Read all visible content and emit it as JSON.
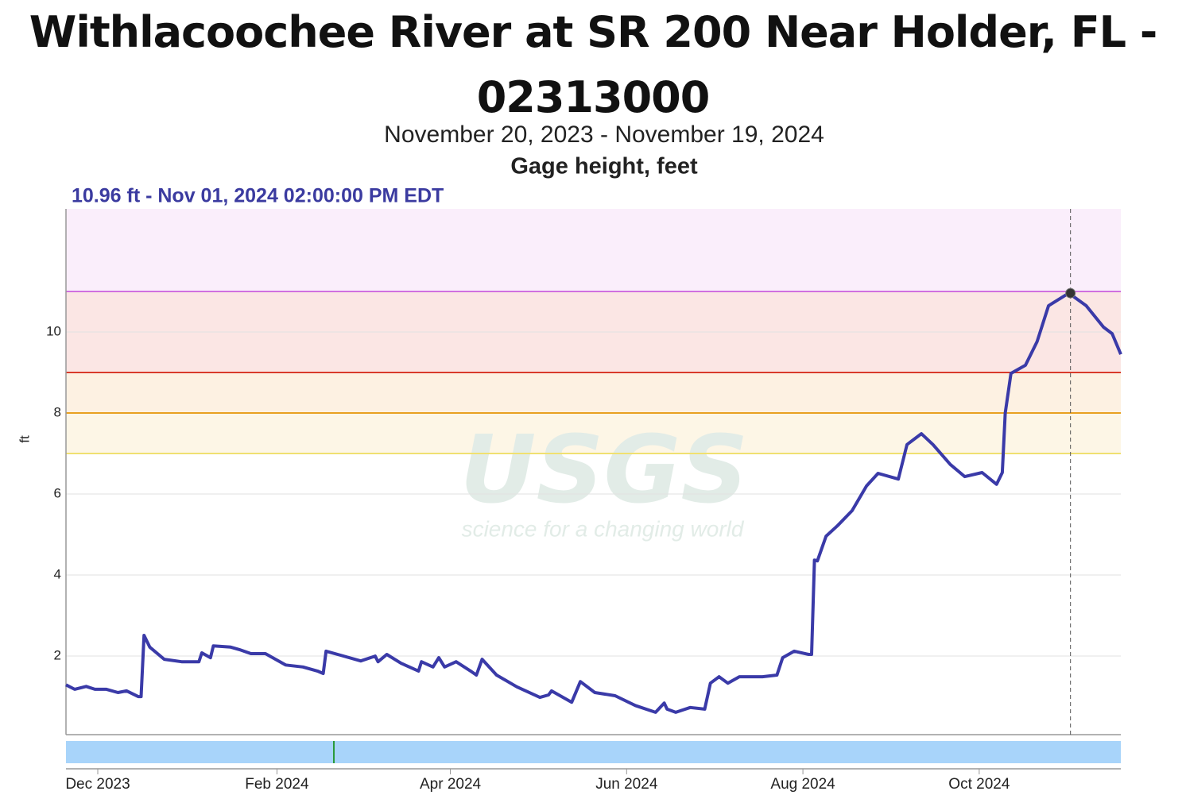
{
  "chart_data": {
    "type": "line",
    "title": "Withlacoochee River at SR 200 Near Holder, FL - 02313000",
    "subtitle": "November 20, 2023 - November 19, 2024",
    "parameter": "Gage height, feet",
    "y_label": "ft",
    "watermark": {
      "name": "USGS",
      "tagline": "science for a changing world"
    },
    "hover": {
      "x": "2024-11-01T14:00",
      "value": 10.96,
      "label": "10.96 ft - Nov 01, 2024 02:00:00 PM EDT"
    },
    "xlim": [
      "2023-11-20",
      "2024-11-19"
    ],
    "xticks": [
      {
        "value": "2023-12-01",
        "label": "Dec 2023"
      },
      {
        "value": "2024-02-01",
        "label": "Feb 2024"
      },
      {
        "value": "2024-04-01",
        "label": "Apr 2024"
      },
      {
        "value": "2024-06-01",
        "label": "Jun 2024"
      },
      {
        "value": "2024-08-01",
        "label": "Aug 2024"
      },
      {
        "value": "2024-10-01",
        "label": "Oct 2024"
      }
    ],
    "ylim": [
      0.06,
      13.04
    ],
    "yticks": [
      2,
      4,
      6,
      8,
      10
    ],
    "grid": true,
    "thresholds": [
      {
        "value": 7,
        "color": "#f0e070",
        "fill": "#fdf6e6"
      },
      {
        "value": 8,
        "color": "#e8a020",
        "fill": "#fdf1e2"
      },
      {
        "value": 9,
        "color": "#d83a2a",
        "fill": "#fbe6e4"
      },
      {
        "value": 11,
        "color": "#d070e0",
        "fill": "#faeefb"
      }
    ],
    "x": [
      "2023-11-20",
      "2023-11-23",
      "2023-11-27",
      "2023-11-30",
      "2023-12-04",
      "2023-12-08",
      "2023-12-11",
      "2023-12-15",
      "2023-12-16",
      "2023-12-17",
      "2023-12-19",
      "2023-12-24",
      "2023-12-30",
      "2024-01-05",
      "2024-01-06",
      "2024-01-09",
      "2024-01-10",
      "2024-01-16",
      "2024-01-19",
      "2024-01-23",
      "2024-01-28",
      "2024-02-04",
      "2024-02-10",
      "2024-02-15",
      "2024-02-17",
      "2024-02-18",
      "2024-02-23",
      "2024-03-01",
      "2024-03-06",
      "2024-03-07",
      "2024-03-10",
      "2024-03-15",
      "2024-03-21",
      "2024-03-22",
      "2024-03-26",
      "2024-03-28",
      "2024-03-30",
      "2024-04-03",
      "2024-04-08",
      "2024-04-10",
      "2024-04-12",
      "2024-04-17",
      "2024-04-24",
      "2024-05-02",
      "2024-05-05",
      "2024-05-06",
      "2024-05-13",
      "2024-05-16",
      "2024-05-21",
      "2024-05-28",
      "2024-06-04",
      "2024-06-11",
      "2024-06-14",
      "2024-06-15",
      "2024-06-18",
      "2024-06-23",
      "2024-06-28",
      "2024-06-30",
      "2024-07-03",
      "2024-07-06",
      "2024-07-10",
      "2024-07-18",
      "2024-07-23",
      "2024-07-25",
      "2024-07-29",
      "2024-08-03",
      "2024-08-04",
      "2024-08-05",
      "2024-08-06",
      "2024-08-09",
      "2024-08-13",
      "2024-08-18",
      "2024-08-23",
      "2024-08-27",
      "2024-09-03",
      "2024-09-06",
      "2024-09-11",
      "2024-09-15",
      "2024-09-21",
      "2024-09-26",
      "2024-10-02",
      "2024-10-07",
      "2024-10-09",
      "2024-10-10",
      "2024-10-12",
      "2024-10-17",
      "2024-10-21",
      "2024-10-25",
      "2024-11-01",
      "2024-11-07",
      "2024-11-13",
      "2024-11-16",
      "2024-11-19"
    ],
    "series": [
      {
        "name": "Gage height",
        "color": "#3a3aa8",
        "values": [
          1.29,
          1.18,
          1.25,
          1.18,
          1.18,
          1.1,
          1.14,
          1.0,
          1.0,
          2.51,
          2.22,
          1.92,
          1.86,
          1.86,
          2.08,
          1.96,
          2.25,
          2.22,
          2.16,
          2.06,
          2.06,
          1.78,
          1.73,
          1.63,
          1.57,
          2.12,
          2.02,
          1.88,
          2.0,
          1.86,
          2.04,
          1.82,
          1.63,
          1.86,
          1.73,
          1.96,
          1.73,
          1.86,
          1.63,
          1.53,
          1.92,
          1.53,
          1.24,
          0.98,
          1.04,
          1.14,
          0.86,
          1.37,
          1.1,
          1.02,
          0.78,
          0.61,
          0.84,
          0.69,
          0.61,
          0.73,
          0.69,
          1.33,
          1.49,
          1.33,
          1.49,
          1.49,
          1.53,
          1.96,
          2.12,
          2.04,
          2.04,
          4.37,
          4.35,
          4.96,
          5.22,
          5.59,
          6.2,
          6.51,
          6.37,
          7.22,
          7.49,
          7.22,
          6.73,
          6.43,
          6.53,
          6.24,
          6.53,
          8.0,
          8.98,
          9.18,
          9.76,
          10.65,
          10.96,
          10.65,
          10.12,
          9.96,
          9.45
        ]
      }
    ]
  }
}
